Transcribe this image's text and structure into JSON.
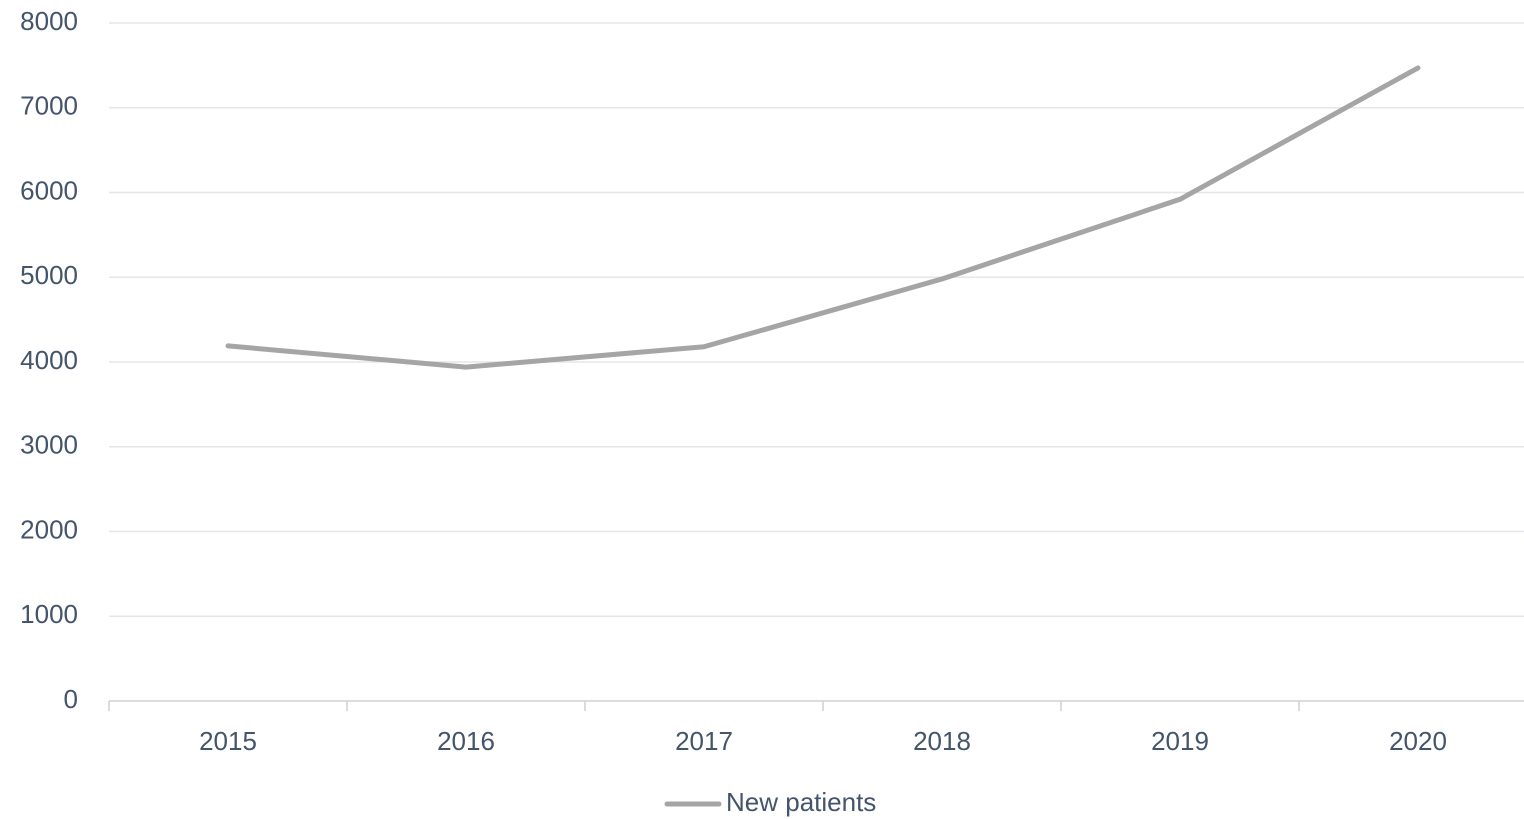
{
  "chart_data": {
    "type": "line",
    "categories": [
      "2015",
      "2016",
      "2017",
      "2018",
      "2019",
      "2020"
    ],
    "series": [
      {
        "name": "New patients",
        "color": "#a5a5a5",
        "values": [
          4190,
          3940,
          4180,
          4980,
          5920,
          7470
        ]
      }
    ],
    "ylim": [
      0,
      8000
    ],
    "yticks": [
      0,
      1000,
      2000,
      3000,
      4000,
      5000,
      6000,
      7000,
      8000
    ],
    "grid": true,
    "legend": "bottom"
  }
}
